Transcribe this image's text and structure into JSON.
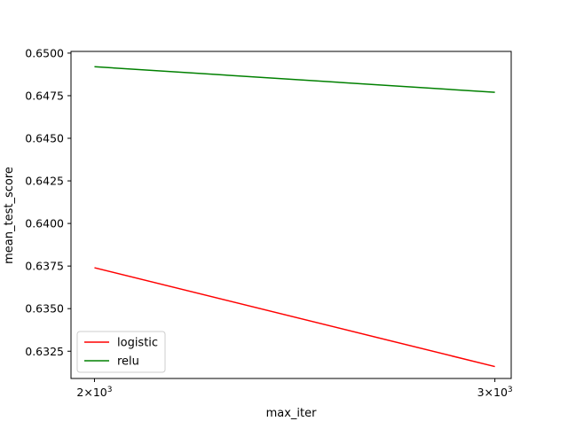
{
  "chart_data": {
    "type": "line",
    "title": "",
    "xlabel": "max_iter",
    "ylabel": "mean_test_score",
    "x_scale": "log",
    "x": [
      2000,
      3000
    ],
    "x_ticks": [
      {
        "value": 2000,
        "mantissa": "2",
        "base": "10",
        "exponent": "3"
      },
      {
        "value": 3000,
        "mantissa": "3",
        "base": "10",
        "exponent": "3"
      }
    ],
    "y_ticks": [
      0.6325,
      0.635,
      0.6375,
      0.64,
      0.6425,
      0.645,
      0.6475,
      0.65
    ],
    "y_tick_labels": [
      "0.6325",
      "0.6350",
      "0.6375",
      "0.6400",
      "0.6425",
      "0.6450",
      "0.6475",
      "0.6500"
    ],
    "xlim": [
      1953,
      3050
    ],
    "ylim": [
      0.6309,
      0.6501
    ],
    "grid": false,
    "legend_position": "lower-left",
    "series": [
      {
        "name": "logistic",
        "color": "#ff0000",
        "values": [
          0.6374,
          0.6316
        ]
      },
      {
        "name": "relu",
        "color": "#008000",
        "values": [
          0.6492,
          0.6477
        ]
      }
    ]
  }
}
